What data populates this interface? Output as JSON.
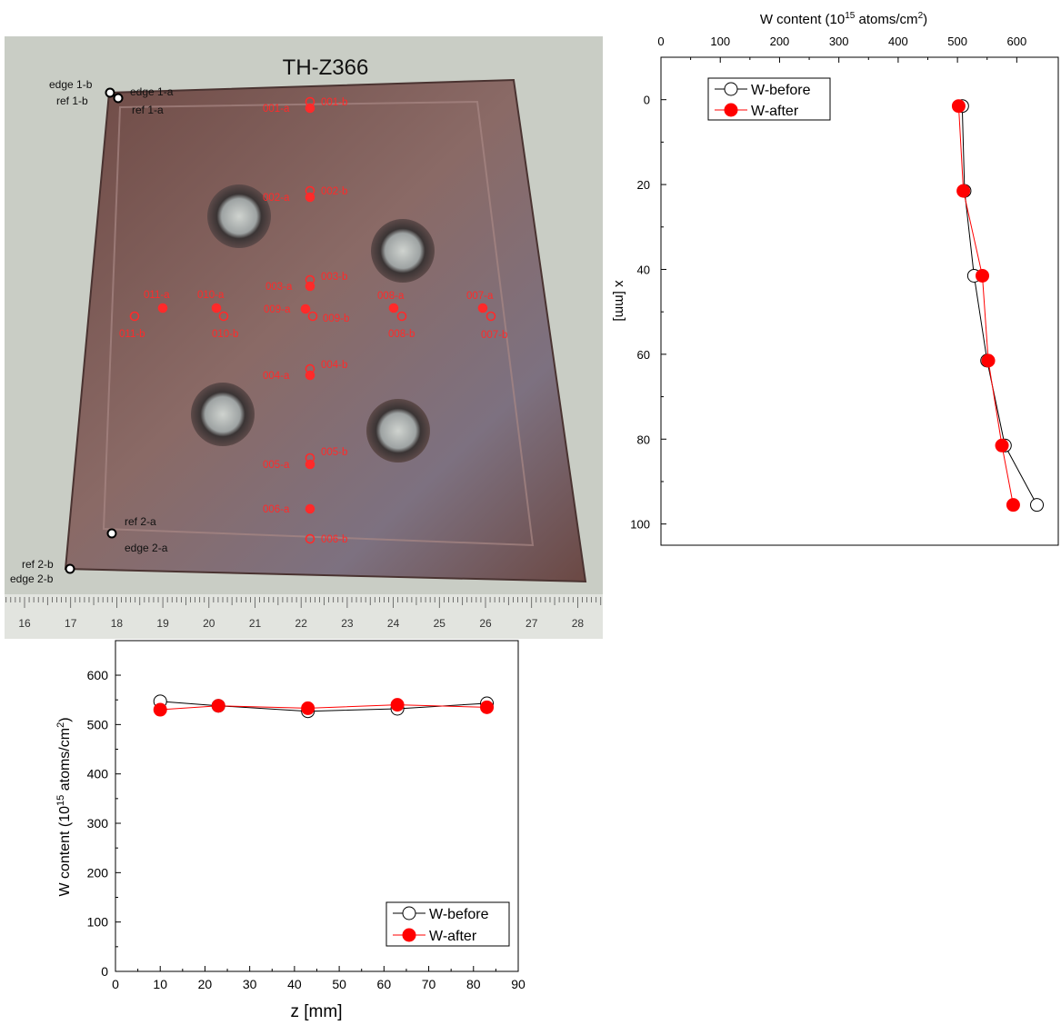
{
  "photo": {
    "title": "TH-Z366",
    "ruler_labels": [
      "16",
      "17",
      "18",
      "19",
      "20",
      "21",
      "22",
      "23",
      "24",
      "25",
      "26",
      "27",
      "28"
    ],
    "corner_labels": [
      {
        "id": "edge-1-b",
        "text": "edge 1-b"
      },
      {
        "id": "edge-1-a",
        "text": "edge 1-a"
      },
      {
        "id": "ref-1-b",
        "text": "ref 1-b"
      },
      {
        "id": "ref-1-a",
        "text": "ref 1-a"
      },
      {
        "id": "ref-2-a",
        "text": "ref 2-a"
      },
      {
        "id": "edge-2-a",
        "text": "edge 2-a"
      },
      {
        "id": "ref-2-b",
        "text": "ref 2-b"
      },
      {
        "id": "edge-2-b",
        "text": "edge 2-b"
      }
    ],
    "point_labels": [
      "001-a",
      "001-b",
      "002-a",
      "002-b",
      "003-a",
      "003-b",
      "004-a",
      "004-b",
      "005-a",
      "005-b",
      "006-a",
      "006-b",
      "007-a",
      "007-b",
      "008-a",
      "008-b",
      "009-a",
      "009-b",
      "010-a",
      "010-b",
      "011-a",
      "011-b"
    ],
    "colors": {
      "plate": "#7a5a56",
      "frame": "#c9cdc5",
      "label": "#ff2a2a"
    }
  },
  "chart_data": [
    {
      "id": "x-profile",
      "type": "line",
      "orientation": "vertical-category",
      "title": "",
      "xlabel_main": "W content (10",
      "xlabel_sup1": "15",
      "xlabel_mid": " atoms/cm",
      "xlabel_sup2": "2",
      "xlabel_end": ")",
      "ylabel": "x [mm]",
      "xlim": [
        0,
        670
      ],
      "ylim": [
        -10,
        105
      ],
      "xticks": [
        0,
        100,
        200,
        300,
        400,
        500,
        600
      ],
      "yticks": [
        0,
        20,
        40,
        60,
        80,
        100
      ],
      "legend": "top-left",
      "series": [
        {
          "name": "W-before",
          "color": "#000000",
          "marker": "open-circle",
          "points": [
            [
              508,
              1.5
            ],
            [
              512,
              21.5
            ],
            [
              528,
              41.5
            ],
            [
              550,
              61.5
            ],
            [
              580,
              81.5
            ],
            [
              634,
              95.5
            ]
          ]
        },
        {
          "name": "W-after",
          "color": "#ff0000",
          "marker": "filled-circle",
          "points": [
            [
              502,
              1.5
            ],
            [
              510,
              21.5
            ],
            [
              542,
              41.5
            ],
            [
              552,
              61.5
            ],
            [
              575,
              81.5
            ],
            [
              594,
              95.5
            ]
          ]
        }
      ]
    },
    {
      "id": "z-profile",
      "type": "line",
      "title": "",
      "xlabel": "z [mm]",
      "ylabel_main": "W content (10",
      "ylabel_sup1": "15",
      "ylabel_mid": " atoms/cm",
      "ylabel_sup2": "2",
      "ylabel_end": ")",
      "xlim": [
        0,
        90
      ],
      "ylim": [
        0,
        670
      ],
      "xticks": [
        0,
        10,
        20,
        30,
        40,
        50,
        60,
        70,
        80,
        90
      ],
      "yticks": [
        0,
        100,
        200,
        300,
        400,
        500,
        600
      ],
      "legend": "bottom-right",
      "series": [
        {
          "name": "W-before",
          "color": "#000000",
          "marker": "open-circle",
          "points": [
            [
              10,
              547
            ],
            [
              23,
              538
            ],
            [
              43,
              527
            ],
            [
              63,
              532
            ],
            [
              83,
              543
            ]
          ]
        },
        {
          "name": "W-after",
          "color": "#ff0000",
          "marker": "filled-circle",
          "points": [
            [
              10,
              530
            ],
            [
              23,
              538
            ],
            [
              43,
              533
            ],
            [
              63,
              540
            ],
            [
              83,
              535
            ]
          ]
        }
      ]
    }
  ]
}
